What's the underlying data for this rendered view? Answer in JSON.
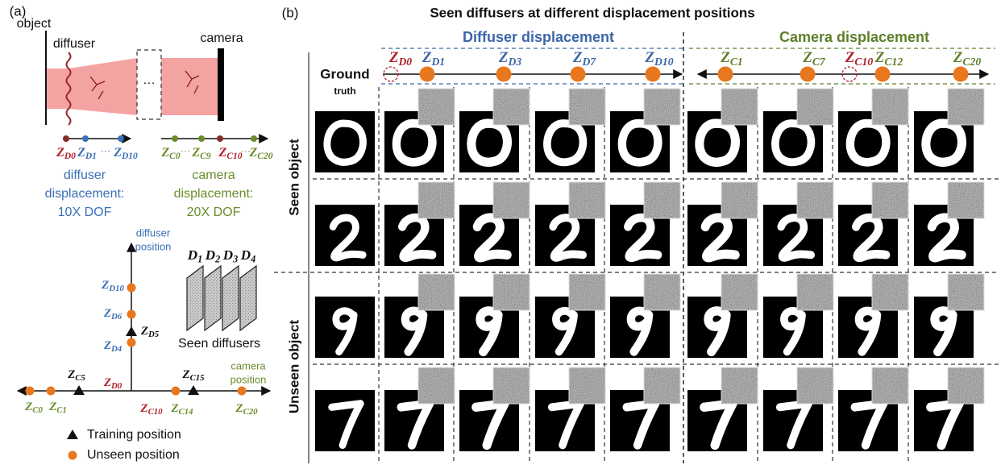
{
  "panel_a": {
    "label": "(a)",
    "setup": {
      "object": "object",
      "diffuser": "diffuser",
      "ellipsis": "…",
      "camera": "camera"
    },
    "diffuser_axis": {
      "labels": [
        {
          "base": "Z",
          "sub": "D0",
          "color": "#b0202a"
        },
        {
          "base": "Z",
          "sub": "D1",
          "color": "#3b6fb6"
        },
        {
          "base": "Z",
          "sub": "D10",
          "color": "#3b6fb6"
        }
      ],
      "dots": [
        "···"
      ]
    },
    "camera_axis": {
      "labels": [
        {
          "base": "Z",
          "sub": "C0",
          "color": "#6a8d2a"
        },
        {
          "base": "Z",
          "sub": "C9",
          "color": "#6a8d2a"
        },
        {
          "base": "Z",
          "sub": "C10",
          "color": "#b0202a"
        },
        {
          "base": "Z",
          "sub": "C20",
          "color": "#6a8d2a"
        }
      ],
      "dots": [
        "···",
        "···"
      ]
    },
    "diffuser_note": {
      "lines": [
        "diffuser",
        "displacement:",
        "10X DOF"
      ],
      "color": "#3b6fb6"
    },
    "camera_note": {
      "lines": [
        "camera",
        "displacement:",
        "20X DOF"
      ],
      "color": "#6a8d2a"
    },
    "position_plot": {
      "diffuser_axis_title": [
        "diffuser",
        "position"
      ],
      "camera_axis_title": [
        "camera",
        "position"
      ],
      "points": [
        {
          "base": "Z",
          "sub": "D10",
          "color": "#3b6fb6",
          "marker": "circle"
        },
        {
          "base": "Z",
          "sub": "D6",
          "color": "#3b6fb6",
          "marker": "circle"
        },
        {
          "base": "Z",
          "sub": "D5",
          "color": "#111111",
          "marker": "triangle"
        },
        {
          "base": "Z",
          "sub": "D4",
          "color": "#3b6fb6",
          "marker": "circle"
        },
        {
          "base": "Z",
          "sub": "D0",
          "color": "#b0202a"
        },
        {
          "base": "Z",
          "sub": "C0",
          "color": "#6a8d2a",
          "marker": "circle"
        },
        {
          "base": "Z",
          "sub": "C1",
          "color": "#6a8d2a",
          "marker": "circle"
        },
        {
          "base": "Z",
          "sub": "C5",
          "color": "#111111",
          "marker": "triangle"
        },
        {
          "base": "Z",
          "sub": "C10",
          "color": "#b0202a"
        },
        {
          "base": "Z",
          "sub": "C14",
          "color": "#6a8d2a",
          "marker": "circle"
        },
        {
          "base": "Z",
          "sub": "C15",
          "color": "#111111",
          "marker": "triangle"
        },
        {
          "base": "Z",
          "sub": "C20",
          "color": "#6a8d2a",
          "marker": "circle"
        }
      ]
    },
    "diffusers": {
      "labels": [
        {
          "base": "D",
          "sub": "1"
        },
        {
          "base": "D",
          "sub": "2"
        },
        {
          "base": "D",
          "sub": "3"
        },
        {
          "base": "D",
          "sub": "4"
        }
      ],
      "caption": "Seen diffusers"
    },
    "legend": [
      {
        "text": "Training position",
        "marker": "triangle"
      },
      {
        "text": "Unseen position",
        "marker": "circle"
      }
    ]
  },
  "panel_b": {
    "label": "(b)",
    "title": "Seen diffusers at different displacement positions",
    "groups": [
      {
        "name": "Diffuser displacement",
        "color": "#3b66a8"
      },
      {
        "name": "Camera displacement",
        "color": "#5f7f2a"
      }
    ],
    "ground_truth": [
      "Ground",
      "truth"
    ],
    "diffuser_positions": [
      {
        "base": "Z",
        "sub": "D0",
        "color": "#b0202a",
        "marker": "dashed"
      },
      {
        "base": "Z",
        "sub": "D1",
        "color": "#3b66a8",
        "marker": "filled"
      },
      {
        "base": "Z",
        "sub": "D3",
        "color": "#3b66a8",
        "marker": "filled"
      },
      {
        "base": "Z",
        "sub": "D7",
        "color": "#3b66a8",
        "marker": "filled"
      },
      {
        "base": "Z",
        "sub": "D10",
        "color": "#3b66a8",
        "marker": "filled"
      }
    ],
    "camera_positions": [
      {
        "base": "Z",
        "sub": "C1",
        "color": "#5f7f2a",
        "marker": "filled"
      },
      {
        "base": "Z",
        "sub": "C7",
        "color": "#5f7f2a",
        "marker": "filled"
      },
      {
        "base": "Z",
        "sub": "C10",
        "color": "#b0202a",
        "marker": "dashed"
      },
      {
        "base": "Z",
        "sub": "C12",
        "color": "#5f7f2a",
        "marker": "filled"
      },
      {
        "base": "Z",
        "sub": "C20",
        "color": "#5f7f2a",
        "marker": "filled"
      }
    ],
    "row_groups": [
      "Seen object",
      "Unseen object"
    ]
  }
}
